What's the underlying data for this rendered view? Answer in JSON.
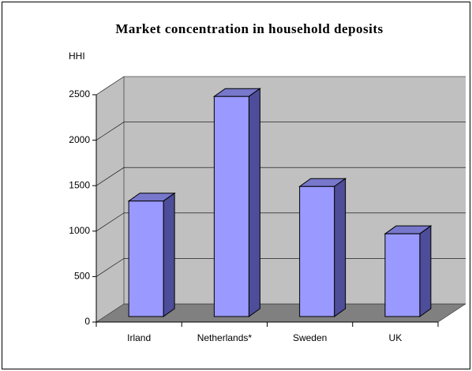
{
  "chart_data": {
    "type": "bar",
    "title": "Market concentration in household deposits",
    "y_label": "HHI",
    "categories": [
      "Irland",
      "Netherlands*",
      "Sweden",
      "UK"
    ],
    "values": [
      1270,
      2420,
      1430,
      910
    ],
    "color": "#9999ff",
    "ylim": [
      0,
      2500
    ],
    "yticks": [
      0,
      500,
      1000,
      1500,
      2000,
      2500
    ],
    "grid": true
  }
}
